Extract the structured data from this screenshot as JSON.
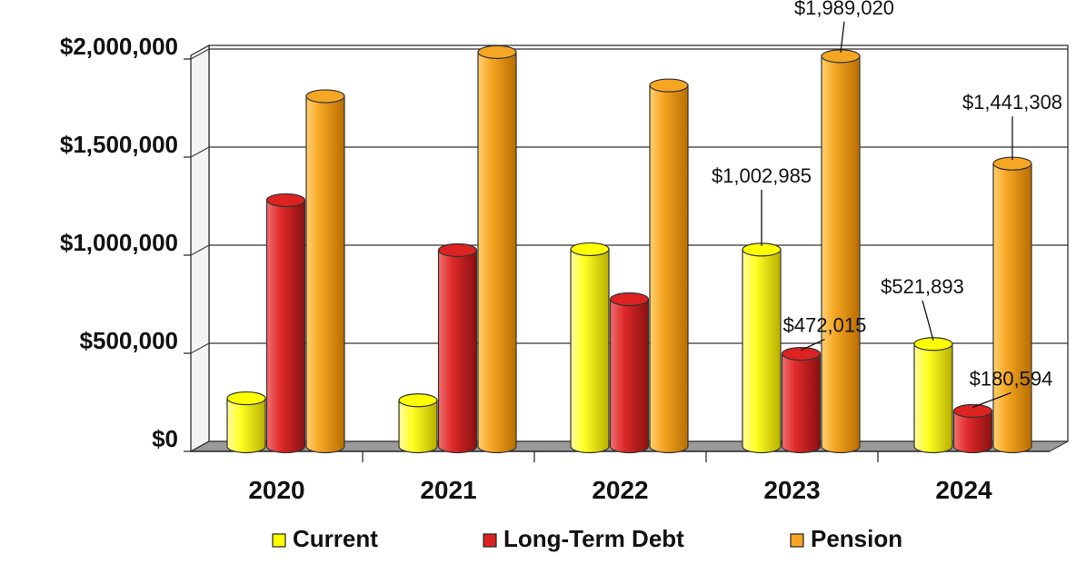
{
  "chart_data": {
    "type": "bar",
    "title": "",
    "xlabel": "",
    "ylabel": "",
    "categories": [
      "2020",
      "2021",
      "2022",
      "2023",
      "2024"
    ],
    "ylim": [
      0,
      2000000
    ],
    "yticks": [
      0,
      500000,
      1000000,
      1500000,
      2000000
    ],
    "ytick_labels": [
      "$0",
      "$500,000",
      "$1,000,000",
      "$1,500,000",
      "$2,000,000"
    ],
    "grid": true,
    "legend_position": "bottom",
    "series": [
      {
        "name": "Current",
        "color": "#ffff00",
        "values": [
          245000,
          235000,
          1005000,
          1002985,
          521893
        ]
      },
      {
        "name": "Long-Term Debt",
        "color": "#dd2222",
        "values": [
          1255000,
          1000000,
          750000,
          472015,
          180594
        ]
      },
      {
        "name": "Pension",
        "color": "#f5a623",
        "values": [
          1785000,
          2010000,
          1840000,
          1989020,
          1441308
        ]
      }
    ],
    "data_labels": [
      {
        "series": 0,
        "category": 3,
        "text": "$1,002,985"
      },
      {
        "series": 0,
        "category": 4,
        "text": "$521,893"
      },
      {
        "series": 1,
        "category": 3,
        "text": "$472,015"
      },
      {
        "series": 1,
        "category": 4,
        "text": "$180,594"
      },
      {
        "series": 2,
        "category": 3,
        "text": "$1,989,020"
      },
      {
        "series": 2,
        "category": 4,
        "text": "$1,441,308"
      }
    ]
  }
}
